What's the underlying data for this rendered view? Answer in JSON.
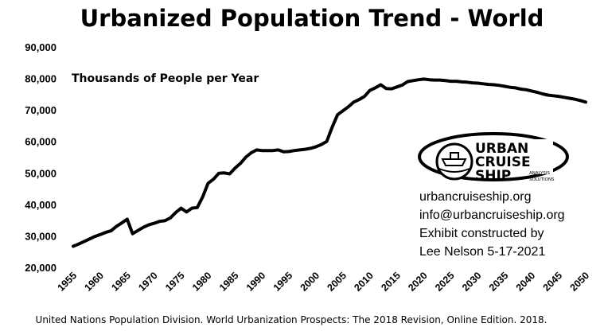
{
  "chart_data": {
    "type": "line",
    "title": "Urbanized Population Trend - World",
    "annotation": "Thousands of People per Year",
    "xlabel": "",
    "ylabel": "",
    "xlim": [
      1955,
      2050
    ],
    "ylim": [
      20000,
      90000
    ],
    "x_ticks": [
      "1955",
      "1960",
      "1965",
      "1970",
      "1975",
      "1980",
      "1985",
      "1990",
      "1995",
      "2000",
      "2005",
      "2010",
      "2015",
      "2020",
      "2025",
      "2030",
      "2035",
      "2040",
      "2045",
      "2050"
    ],
    "y_ticks": [
      "20,000",
      "30,000",
      "40,000",
      "50,000",
      "60,000",
      "70,000",
      "80,000",
      "90,000"
    ],
    "grid": false,
    "legend": "none",
    "line_color": "#000000",
    "series": [
      {
        "x": [
          1955,
          1956,
          1957,
          1958,
          1959,
          1960,
          1961,
          1962,
          1963,
          1964,
          1965,
          1966,
          1967,
          1968,
          1969,
          1970,
          1971,
          1972,
          1973,
          1974,
          1975,
          1976,
          1977,
          1978,
          1979,
          1980,
          1981,
          1982,
          1983,
          1984,
          1985,
          1986,
          1987,
          1988,
          1989,
          1990,
          1991,
          1992,
          1993,
          1994,
          1995,
          1996,
          1997,
          1998,
          1999,
          2000,
          2001,
          2002,
          2003,
          2004,
          2005,
          2006,
          2007,
          2008,
          2009,
          2010,
          2011,
          2012,
          2013,
          2014,
          2015,
          2016,
          2017,
          2018,
          2019,
          2020,
          2021,
          2022,
          2023,
          2024,
          2025,
          2026,
          2027,
          2028,
          2029,
          2030,
          2031,
          2032,
          2033,
          2034,
          2035,
          2036,
          2037,
          2038,
          2039,
          2040,
          2041,
          2042,
          2043,
          2044,
          2045,
          2046,
          2047,
          2048,
          2049,
          2050
        ],
        "values": [
          26700,
          27400,
          28200,
          29000,
          29800,
          30400,
          31100,
          31600,
          33000,
          34100,
          35300,
          30700,
          31700,
          32700,
          33500,
          34000,
          34600,
          34800,
          35700,
          37400,
          38800,
          37600,
          38800,
          39000,
          42400,
          46700,
          48000,
          49900,
          50000,
          49700,
          51500,
          53000,
          55000,
          56400,
          57300,
          57100,
          57100,
          57100,
          57300,
          56700,
          56800,
          57100,
          57300,
          57500,
          57800,
          58300,
          59000,
          60000,
          64500,
          68500,
          69700,
          71000,
          72500,
          73300,
          74300,
          76200,
          77000,
          78000,
          76800,
          76700,
          77300,
          77900,
          79000,
          79300,
          79600,
          79800,
          79600,
          79500,
          79500,
          79300,
          79100,
          79100,
          78900,
          78800,
          78600,
          78500,
          78300,
          78100,
          78000,
          77800,
          77500,
          77200,
          77000,
          76600,
          76400,
          76000,
          75600,
          75100,
          74700,
          74500,
          74300,
          74000,
          73700,
          73400,
          73000,
          72500
        ]
      }
    ]
  },
  "credits": {
    "website": "urbancruiseship.org",
    "email": "info@urbancruiseship.org",
    "line3": "Exhibit constructed by",
    "line4": "Lee Nelson 5-17-2021"
  },
  "logo": {
    "line1": "URBAN",
    "line2": "CRUISE",
    "line3": "SHIP",
    "tag1": "ANALYSIS",
    "tag2": "SOLUTIONS"
  },
  "source": "United Nations Population Division. World Urbanization Prospects: The 2018 Revision, Online Edition. 2018."
}
